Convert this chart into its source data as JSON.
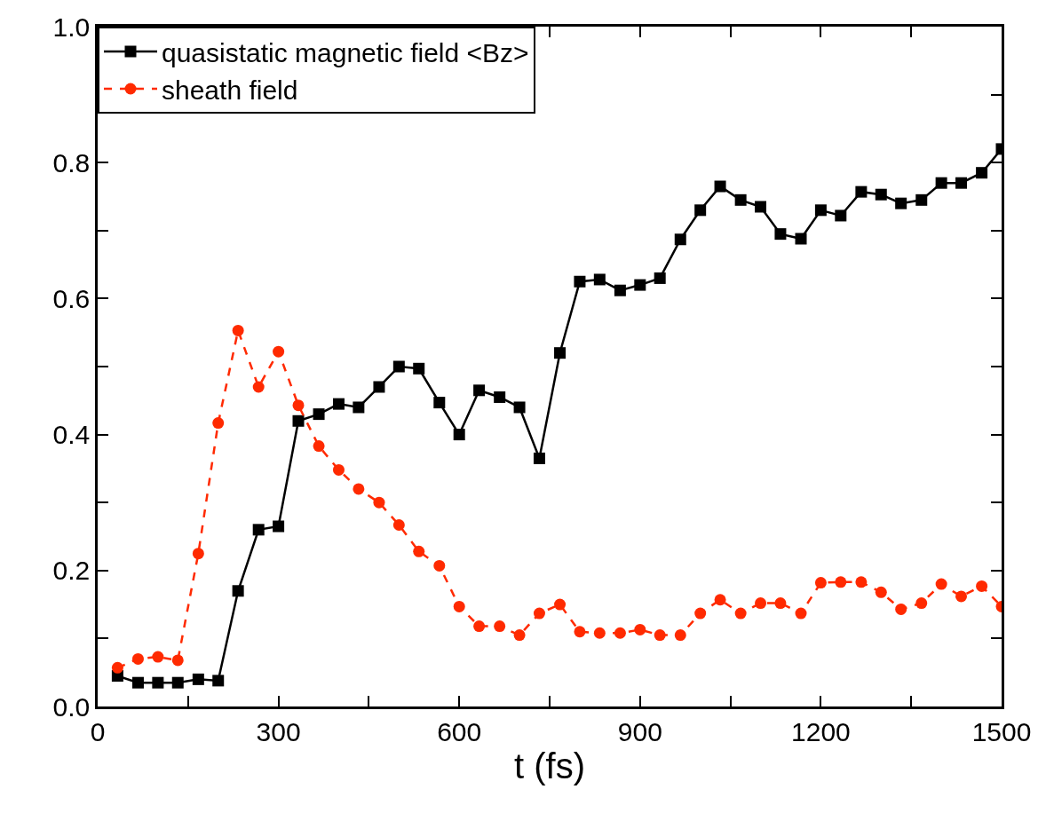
{
  "chart_data": {
    "type": "line",
    "xlabel": "t (fs)",
    "x": [
      33,
      67,
      100,
      133,
      167,
      200,
      233,
      267,
      300,
      333,
      367,
      400,
      433,
      467,
      500,
      533,
      567,
      600,
      633,
      667,
      700,
      733,
      767,
      800,
      833,
      867,
      900,
      933,
      967,
      1000,
      1033,
      1067,
      1100,
      1133,
      1167,
      1200,
      1233,
      1267,
      1300,
      1333,
      1367,
      1400,
      1433,
      1467,
      1500
    ],
    "series": [
      {
        "name": "quasistatic magnetic field <Bz>",
        "color": "#000000",
        "marker": "square",
        "line_style": "solid",
        "values": [
          0.045,
          0.035,
          0.035,
          0.035,
          0.04,
          0.038,
          0.17,
          0.26,
          0.265,
          0.42,
          0.43,
          0.445,
          0.44,
          0.47,
          0.5,
          0.497,
          0.447,
          0.4,
          0.465,
          0.455,
          0.44,
          0.365,
          0.52,
          0.625,
          0.628,
          0.612,
          0.62,
          0.63,
          0.687,
          0.73,
          0.765,
          0.745,
          0.735,
          0.695,
          0.688,
          0.73,
          0.722,
          0.757,
          0.753,
          0.74,
          0.745,
          0.77,
          0.77,
          0.785,
          0.82
        ]
      },
      {
        "name": "sheath field",
        "color": "#ff2a00",
        "marker": "circle",
        "line_style": "dashed",
        "values": [
          0.057,
          0.07,
          0.073,
          0.068,
          0.225,
          0.417,
          0.553,
          0.47,
          0.522,
          0.443,
          0.383,
          0.348,
          0.32,
          0.3,
          0.267,
          0.228,
          0.207,
          0.147,
          0.118,
          0.118,
          0.105,
          0.137,
          0.15,
          0.11,
          0.108,
          0.108,
          0.113,
          0.105,
          0.105,
          0.137,
          0.157,
          0.137,
          0.152,
          0.152,
          0.137,
          0.182,
          0.183,
          0.183,
          0.168,
          0.143,
          0.152,
          0.18,
          0.162,
          0.177,
          0.147
        ]
      }
    ],
    "xlim": [
      0,
      1500
    ],
    "xticks": [
      0,
      {
        "value": 150,
        "label": null
      },
      300,
      {
        "value": 450,
        "label": null
      },
      600,
      {
        "value": 750,
        "label": null
      },
      900,
      {
        "value": 1050,
        "label": null
      },
      1200,
      {
        "value": 1350,
        "label": null
      },
      1500
    ],
    "ylim": [
      0,
      1
    ],
    "yticks": [
      {
        "value": 0,
        "label": "0.0"
      },
      {
        "value": 0.1,
        "label": null
      },
      0.2,
      {
        "value": 0.3,
        "label": null
      },
      0.4,
      {
        "value": 0.5,
        "label": null
      },
      0.6,
      {
        "value": 0.7,
        "label": null
      },
      0.8,
      {
        "value": 0.9,
        "label": null
      },
      {
        "value": 1,
        "label": "1.0"
      }
    ],
    "legend": "top left"
  }
}
